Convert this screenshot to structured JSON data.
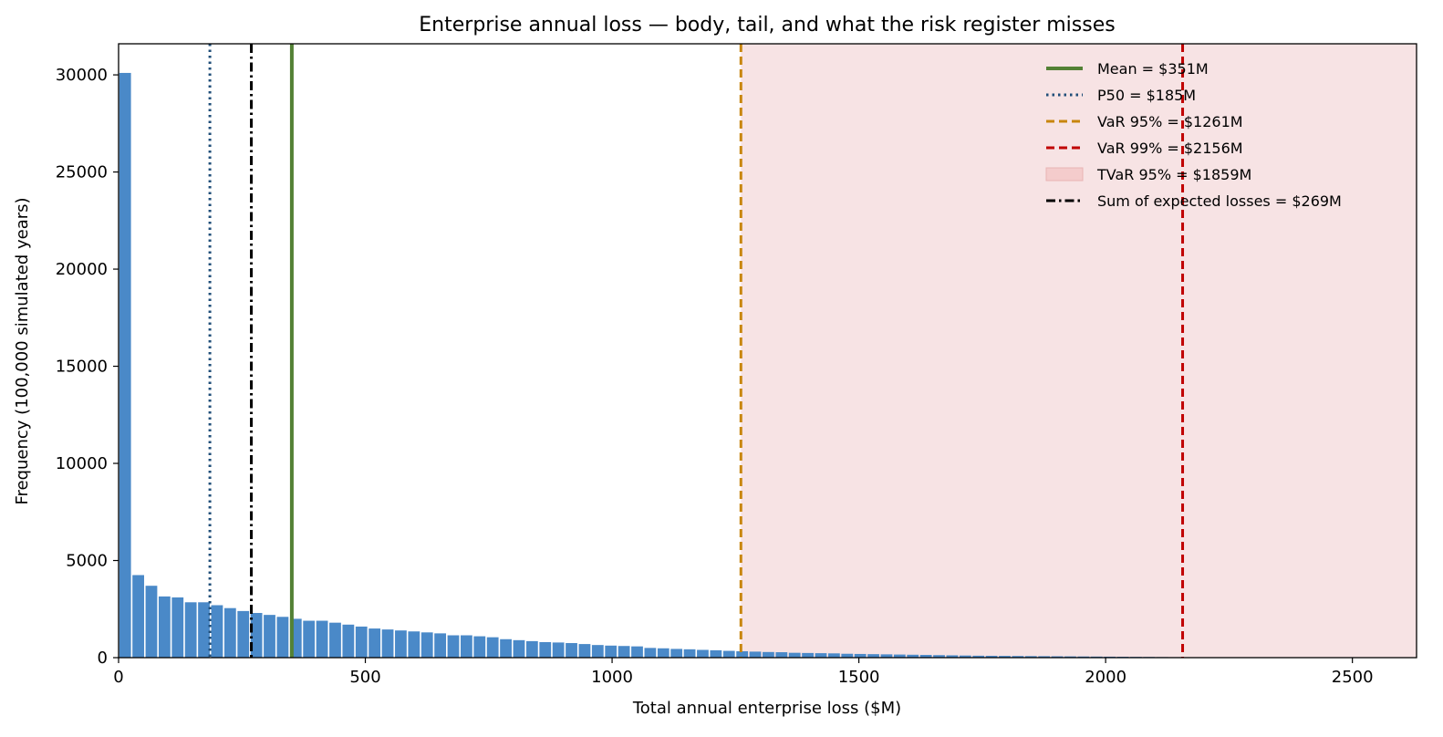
{
  "chart_data": {
    "type": "bar",
    "title": "Enterprise annual loss — body, tail, and what the risk register misses",
    "xlabel": "Total annual enterprise loss  ($M)",
    "ylabel": "Frequency  (100,000 simulated years)",
    "xlim": [
      0,
      2630
    ],
    "ylim": [
      0,
      31600
    ],
    "xticks": [
      0,
      500,
      1000,
      1500,
      2000,
      2500
    ],
    "yticks": [
      0,
      5000,
      10000,
      15000,
      20000,
      25000,
      30000
    ],
    "bin_width": 26.6,
    "bin_start": 0,
    "values": [
      30100,
      4250,
      3700,
      3150,
      3100,
      2850,
      2850,
      2700,
      2550,
      2400,
      2300,
      2200,
      2100,
      2000,
      1900,
      1900,
      1800,
      1700,
      1600,
      1500,
      1450,
      1400,
      1350,
      1300,
      1250,
      1150,
      1150,
      1100,
      1050,
      950,
      900,
      850,
      800,
      780,
      750,
      700,
      650,
      620,
      600,
      580,
      500,
      480,
      450,
      430,
      400,
      380,
      350,
      330,
      310,
      290,
      280,
      250,
      240,
      230,
      220,
      200,
      190,
      180,
      170,
      160,
      150,
      140,
      130,
      120,
      110,
      100,
      95,
      90,
      85,
      80,
      75,
      70,
      65,
      60,
      55,
      50,
      45,
      40,
      35,
      30,
      25,
      20,
      20,
      18,
      16,
      15,
      14,
      13,
      12,
      11,
      10,
      9,
      8,
      7,
      6,
      5,
      5,
      4,
      4
    ],
    "bar_color": "#4a89c8",
    "tail_shade": {
      "from": 1261,
      "to": 2630,
      "color": "#f7e3e4"
    },
    "lines": [
      {
        "label": "Mean = $351M",
        "x": 351,
        "color": "#538135",
        "style": "solid"
      },
      {
        "label": "P50 = $185M",
        "x": 185,
        "color": "#1f4e79",
        "style": "dotted"
      },
      {
        "label": "VaR 95% = $1261M",
        "x": 1261,
        "color": "#c8860d",
        "style": "dashed"
      },
      {
        "label": "VaR 99% = $2156M",
        "x": 2156,
        "color": "#c00000",
        "style": "dashed"
      },
      {
        "label": "TVaR 95% = $1859M",
        "x": null,
        "color": "#f4cccc",
        "style": "patch"
      },
      {
        "label": "Sum of expected losses = $269M",
        "x": 269,
        "color": "#000000",
        "style": "dashdot"
      }
    ],
    "legend_position": "top-right",
    "grid": false
  }
}
